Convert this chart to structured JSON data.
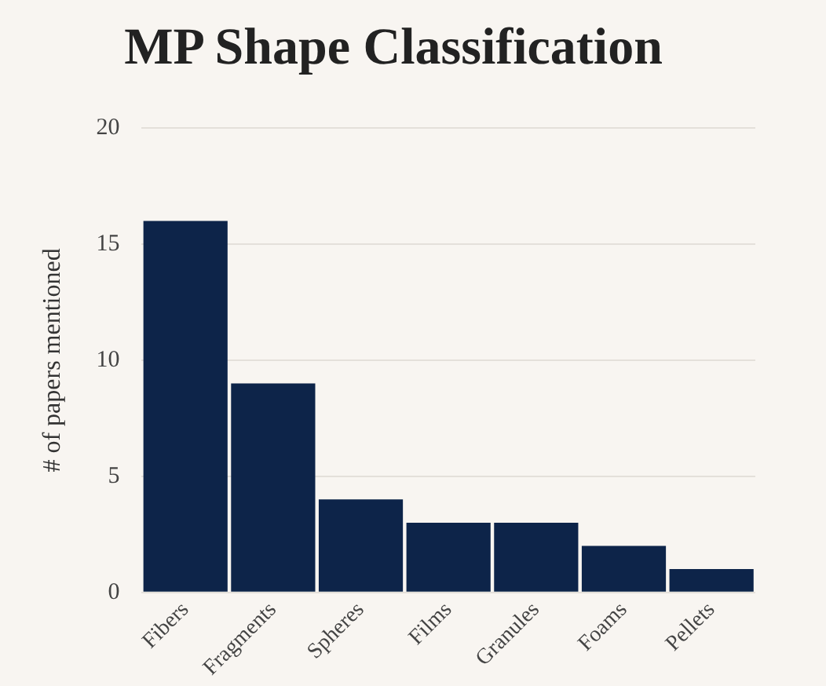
{
  "chart_data": {
    "type": "bar",
    "title": "MP Shape Classification",
    "ylabel": "# of papers mentioned",
    "categories": [
      "Fibers",
      "Fragments",
      "Spheres",
      "Films",
      "Granules",
      "Foams",
      "Pellets"
    ],
    "values": [
      16,
      9,
      4,
      3,
      3,
      2,
      1
    ],
    "color": "#0d2449",
    "ylim": [
      0,
      20
    ],
    "yticks": [
      0,
      5,
      10,
      15,
      20
    ],
    "grid": "y",
    "legend": false
  }
}
